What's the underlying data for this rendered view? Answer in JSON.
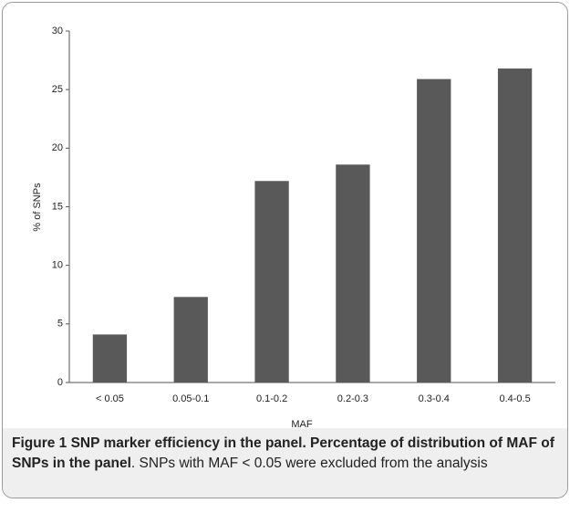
{
  "chart_data": {
    "type": "bar",
    "categories": [
      "< 0.05",
      "0.05-0.1",
      "0.1-0.2",
      "0.2-0.3",
      "0.3-0.4",
      "0.4-0.5"
    ],
    "values": [
      4.1,
      7.3,
      17.2,
      18.6,
      25.9,
      26.8
    ],
    "color": "#595959",
    "ylim": [
      0,
      30
    ],
    "yticks": [
      0,
      5,
      10,
      15,
      20,
      25,
      30
    ],
    "xlabel": "MAF",
    "ylabel": "% of SNPs",
    "grid": false
  },
  "caption": {
    "title": "Figure 1 SNP marker efficiency in the panel. Percentage of distribution of MAF of SNPs in the panel",
    "text": ". SNPs with MAF < 0.05 were excluded from the analysis"
  }
}
